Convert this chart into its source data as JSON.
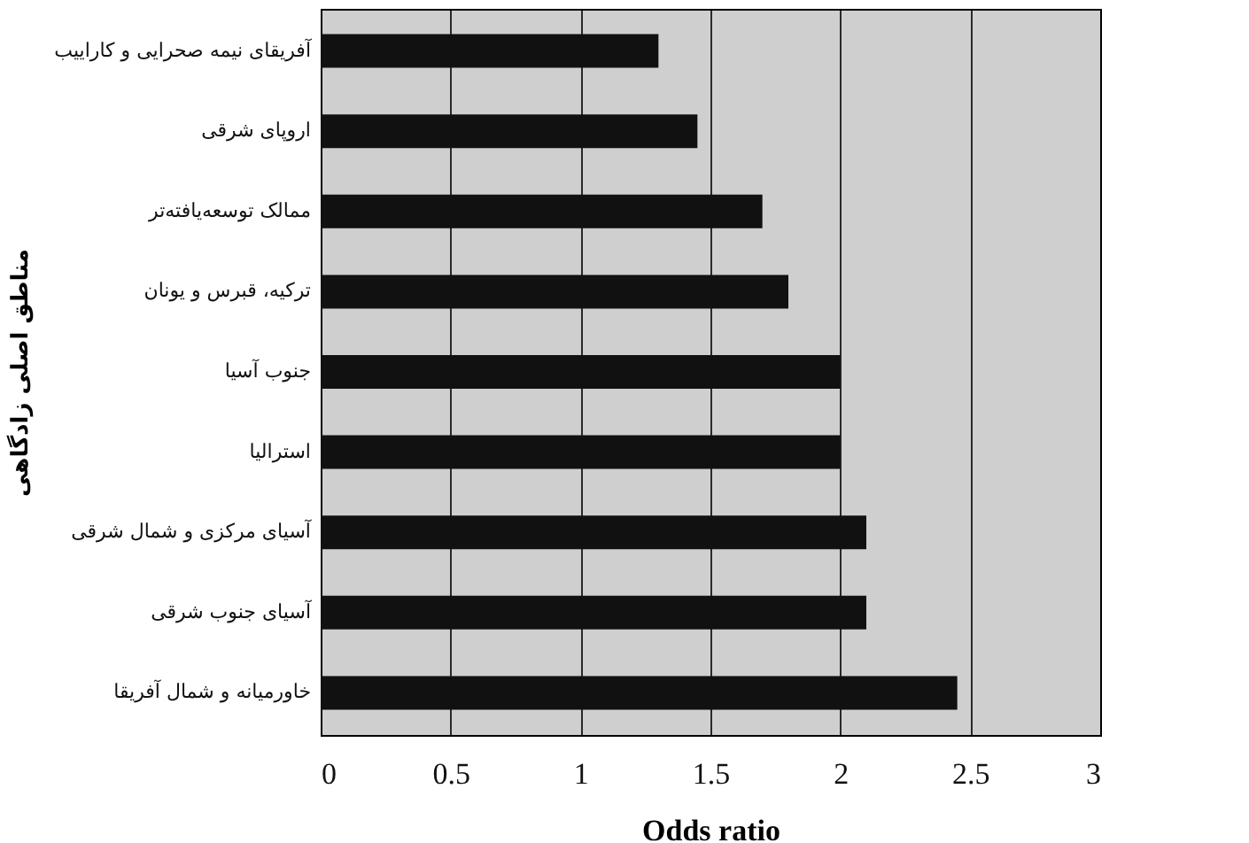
{
  "chart_data": {
    "type": "bar",
    "orientation": "horizontal",
    "xlabel": "Odds ratio",
    "ylabel": "مناطق اصلی زادگاهی",
    "categories": [
      "آفریقای نیمه صحرایی و کاراییب",
      "اروپای شرقی",
      "ممالک توسعه‌یافته‌تر",
      "ترکیه، قبرس و یونان",
      "جنوب آسیا",
      "استرالیا",
      "آسیای مرکزی و شمال شرقی",
      "آسیای جنوب شرقی",
      "خاورمیانه و شمال آفریقا"
    ],
    "values": [
      1.3,
      1.45,
      1.7,
      1.8,
      2.0,
      2.0,
      2.1,
      2.1,
      2.45
    ],
    "color": "#111111",
    "xlim": [
      0,
      3
    ],
    "xticks": [
      0,
      0.5,
      1,
      1.5,
      2,
      2.5,
      3
    ],
    "grid": "x"
  }
}
